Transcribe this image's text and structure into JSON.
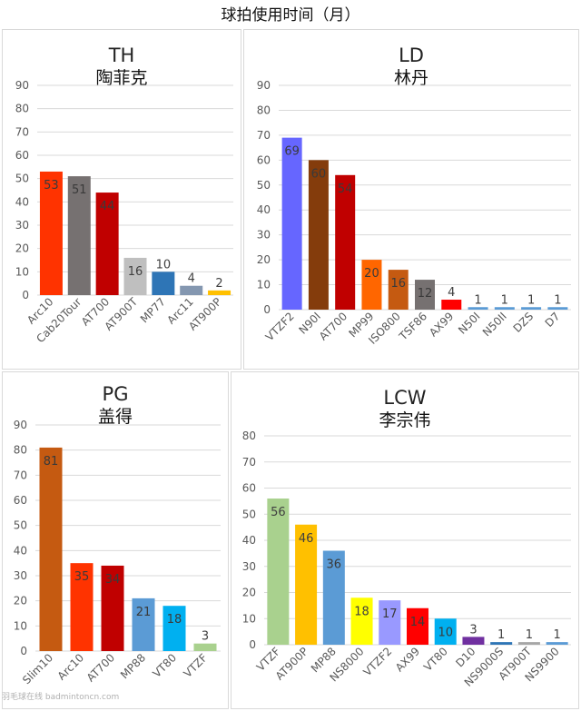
{
  "title": "球拍使用时间（月）",
  "watermark": "羽毛球在线 badmintoncn.com",
  "chart_data": [
    {
      "type": "bar",
      "code": "TH",
      "name": "陶菲克",
      "ylim": [
        0,
        90
      ],
      "yticks": [
        0,
        10,
        20,
        30,
        40,
        50,
        60,
        70,
        80,
        90
      ],
      "grid": true,
      "categories": [
        "Arc10",
        "Cab20Tour",
        "AT700",
        "AT900T",
        "MP77",
        "Arc11",
        "AT900P"
      ],
      "values": [
        53,
        51,
        44,
        16,
        10,
        4,
        2
      ],
      "colors": [
        "#ff3300",
        "#767171",
        "#c00000",
        "#bfbfbf",
        "#2e75b6",
        "#8497b0",
        "#ffc000"
      ]
    },
    {
      "type": "bar",
      "code": "LD",
      "name": "林丹",
      "ylim": [
        0,
        90
      ],
      "yticks": [
        0,
        10,
        20,
        30,
        40,
        50,
        60,
        70,
        80,
        90
      ],
      "grid": true,
      "categories": [
        "VTZF2",
        "N90I",
        "AT700",
        "MP99",
        "ISO800",
        "TSF86",
        "AX99",
        "N50I",
        "N50II",
        "DZS",
        "D7"
      ],
      "values": [
        69,
        60,
        54,
        20,
        16,
        12,
        4,
        1,
        1,
        1,
        1
      ],
      "colors": [
        "#6666ff",
        "#843c0c",
        "#c00000",
        "#ff6600",
        "#c55a11",
        "#767171",
        "#ff0000",
        "#5b9bd5",
        "#5b9bd5",
        "#5b9bd5",
        "#5b9bd5"
      ]
    },
    {
      "type": "bar",
      "code": "PG",
      "name": "盖得",
      "ylim": [
        0,
        90
      ],
      "yticks": [
        0,
        10,
        20,
        30,
        40,
        50,
        60,
        70,
        80,
        90
      ],
      "grid": true,
      "categories": [
        "Slim10",
        "Arc10",
        "AT700",
        "MP88",
        "VT80",
        "VTZF"
      ],
      "values": [
        81,
        35,
        34,
        21,
        18,
        3
      ],
      "colors": [
        "#c55a11",
        "#ff3300",
        "#c00000",
        "#5b9bd5",
        "#00b0f0",
        "#a9d18e"
      ]
    },
    {
      "type": "bar",
      "code": "LCW",
      "name": "李宗伟",
      "ylim": [
        0,
        80
      ],
      "yticks": [
        0,
        10,
        20,
        30,
        40,
        50,
        60,
        70,
        80
      ],
      "grid": true,
      "categories": [
        "VTZF",
        "AT900P",
        "MP88",
        "NS8000",
        "VTZF2",
        "AX99",
        "VT80",
        "D10",
        "NS9000S",
        "AT900T",
        "NS9900"
      ],
      "values": [
        56,
        46,
        36,
        18,
        17,
        14,
        10,
        3,
        1,
        1,
        1
      ],
      "colors": [
        "#a9d18e",
        "#ffc000",
        "#5b9bd5",
        "#ffff00",
        "#9999ff",
        "#ff0000",
        "#00b0f0",
        "#7030a0",
        "#2e75b6",
        "#a6a6a6",
        "#5b9bd5"
      ]
    }
  ]
}
